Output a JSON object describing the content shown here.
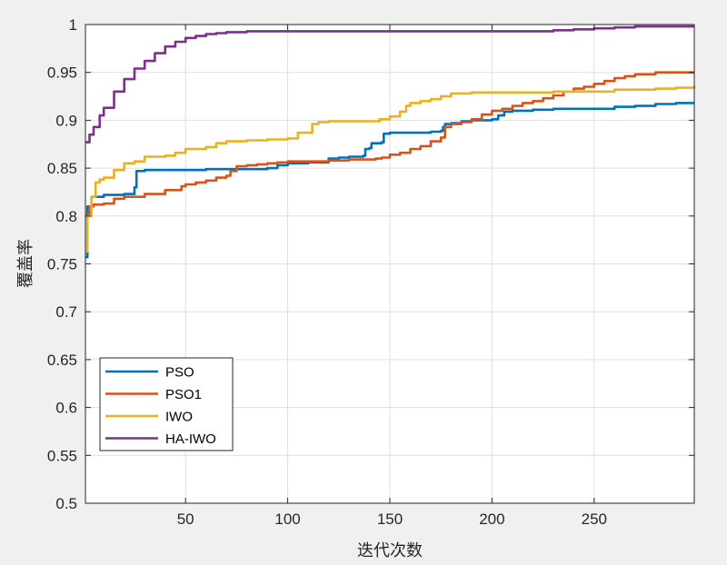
{
  "chart_data": {
    "type": "line",
    "title": "",
    "xlabel": "迭代次数",
    "ylabel": "覆盖率",
    "xlim": [
      1,
      299
    ],
    "ylim": [
      0.5,
      1
    ],
    "grid": true,
    "legend_position": "bottom-left",
    "x_ticks": [
      50,
      100,
      150,
      200,
      250
    ],
    "x_tick_labels": [
      "50",
      "100",
      "150",
      "200",
      "250"
    ],
    "y_ticks": [
      0.5,
      0.55,
      0.6,
      0.65,
      0.7,
      0.75,
      0.8,
      0.85,
      0.9,
      0.95,
      1
    ],
    "y_tick_labels": [
      "0.5",
      "0.55",
      "0.6",
      "0.65",
      "0.7",
      "0.75",
      "0.8",
      "0.85",
      "0.9",
      "0.95",
      "1"
    ],
    "series": [
      {
        "name": "PSO",
        "color": "#0072bd",
        "x": [
          1,
          2,
          4,
          10,
          20,
          24,
          25,
          26,
          30,
          40,
          60,
          80,
          90,
          95,
          100,
          110,
          120,
          125,
          130,
          137,
          138,
          140,
          141,
          146,
          147,
          150,
          160,
          170,
          175,
          176,
          177,
          180,
          185,
          190,
          200,
          203,
          206,
          210,
          220,
          230,
          240,
          250,
          260,
          270,
          280,
          290,
          299
        ],
        "y": [
          0.757,
          0.81,
          0.82,
          0.822,
          0.823,
          0.823,
          0.83,
          0.847,
          0.848,
          0.848,
          0.849,
          0.849,
          0.85,
          0.853,
          0.855,
          0.856,
          0.86,
          0.861,
          0.862,
          0.863,
          0.87,
          0.871,
          0.876,
          0.877,
          0.886,
          0.887,
          0.887,
          0.888,
          0.889,
          0.893,
          0.896,
          0.897,
          0.899,
          0.9,
          0.901,
          0.905,
          0.909,
          0.91,
          0.911,
          0.912,
          0.912,
          0.912,
          0.914,
          0.915,
          0.917,
          0.918,
          0.918
        ]
      },
      {
        "name": "PSO1",
        "color": "#d95319",
        "x": [
          1,
          3,
          5,
          10,
          15,
          20,
          30,
          40,
          48,
          50,
          55,
          60,
          65,
          70,
          72,
          75,
          80,
          85,
          90,
          95,
          100,
          110,
          120,
          130,
          140,
          143,
          146,
          150,
          155,
          160,
          165,
          170,
          175,
          177,
          180,
          185,
          190,
          195,
          200,
          205,
          210,
          215,
          220,
          225,
          230,
          235,
          240,
          245,
          250,
          255,
          260,
          265,
          270,
          280,
          290,
          299
        ],
        "y": [
          0.8,
          0.81,
          0.812,
          0.813,
          0.818,
          0.82,
          0.823,
          0.827,
          0.831,
          0.833,
          0.835,
          0.837,
          0.84,
          0.842,
          0.847,
          0.852,
          0.853,
          0.854,
          0.855,
          0.856,
          0.857,
          0.857,
          0.858,
          0.859,
          0.859,
          0.86,
          0.861,
          0.864,
          0.866,
          0.87,
          0.873,
          0.878,
          0.882,
          0.893,
          0.896,
          0.898,
          0.901,
          0.906,
          0.91,
          0.912,
          0.915,
          0.918,
          0.92,
          0.923,
          0.926,
          0.93,
          0.933,
          0.935,
          0.938,
          0.941,
          0.944,
          0.946,
          0.948,
          0.95,
          0.95,
          0.95
        ]
      },
      {
        "name": "IWO",
        "color": "#edb120",
        "x": [
          1,
          2,
          4,
          6,
          8,
          10,
          15,
          20,
          25,
          30,
          40,
          45,
          50,
          60,
          65,
          70,
          80,
          90,
          100,
          105,
          112,
          115,
          120,
          130,
          140,
          145,
          150,
          155,
          158,
          160,
          165,
          170,
          175,
          180,
          190,
          200,
          210,
          220,
          230,
          240,
          250,
          260,
          270,
          280,
          290,
          299
        ],
        "y": [
          0.763,
          0.8,
          0.82,
          0.835,
          0.838,
          0.84,
          0.848,
          0.855,
          0.857,
          0.862,
          0.863,
          0.866,
          0.87,
          0.872,
          0.876,
          0.878,
          0.879,
          0.88,
          0.881,
          0.887,
          0.896,
          0.898,
          0.899,
          0.899,
          0.899,
          0.901,
          0.904,
          0.909,
          0.915,
          0.918,
          0.92,
          0.922,
          0.925,
          0.928,
          0.929,
          0.929,
          0.929,
          0.929,
          0.93,
          0.93,
          0.93,
          0.932,
          0.932,
          0.933,
          0.934,
          0.936
        ]
      },
      {
        "name": "HA-IWO",
        "color": "#7e2f8e",
        "x": [
          1,
          3,
          5,
          8,
          10,
          15,
          20,
          25,
          30,
          35,
          40,
          45,
          50,
          55,
          60,
          65,
          70,
          75,
          80,
          90,
          100,
          120,
          150,
          180,
          200,
          220,
          230,
          240,
          250,
          260,
          270,
          280,
          290,
          299
        ],
        "y": [
          0.877,
          0.885,
          0.893,
          0.905,
          0.913,
          0.93,
          0.943,
          0.954,
          0.962,
          0.97,
          0.977,
          0.982,
          0.986,
          0.988,
          0.99,
          0.991,
          0.992,
          0.992,
          0.993,
          0.993,
          0.993,
          0.993,
          0.993,
          0.993,
          0.993,
          0.993,
          0.994,
          0.995,
          0.996,
          0.997,
          0.998,
          0.998,
          0.998,
          0.998
        ]
      }
    ]
  }
}
